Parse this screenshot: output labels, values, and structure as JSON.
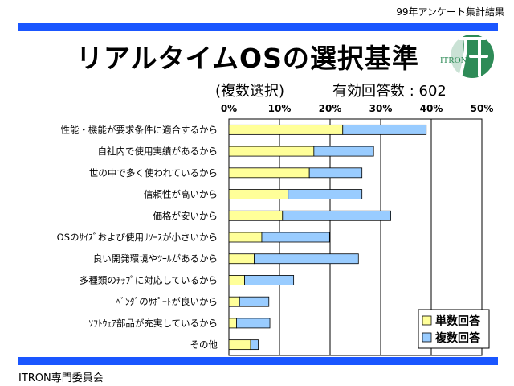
{
  "header": {
    "note": "99年アンケート集計結果",
    "title": "リアルタイムOSの選択基準",
    "subtitle_left": "(複数選択)",
    "subtitle_right": "有効回答数 : 602"
  },
  "logo": {
    "text": "ITRON",
    "color": "#2e8b57"
  },
  "footer": {
    "text": "ITRON専門委員会"
  },
  "colors": {
    "band": "#1a56ff",
    "single": "#ffff99",
    "multiple": "#99ccff"
  },
  "chart_data": {
    "type": "bar",
    "orientation": "horizontal",
    "stacked": true,
    "categories": [
      "性能・機能が要求条件に適合するから",
      "自社内で使用実績があるから",
      "世の中で多く使われているから",
      "信頼性が高いから",
      "価格が安いから",
      "OSのｻｲｽﾞおよび使用ﾘｿｰｽが小さいから",
      "良い開発環境やﾂｰﾙがあるから",
      "多種類のﾁｯﾌﾟに対応しているから",
      "ﾍﾞﾝﾀﾞのｻﾎﾟｰﾄが良いから",
      "ｿﾌﾄｳｪｱ部品が充実しているから",
      "その他"
    ],
    "series": [
      {
        "name": "単数回答",
        "values": [
          22.5,
          16.8,
          15.9,
          11.7,
          10.6,
          6.5,
          5.0,
          3.1,
          2.1,
          1.5,
          4.3
        ]
      },
      {
        "name": "複数回答",
        "values": [
          16.5,
          11.8,
          10.4,
          14.6,
          21.4,
          13.4,
          20.6,
          9.7,
          5.8,
          6.6,
          1.5
        ]
      }
    ],
    "x_ticks": [
      "0%",
      "10%",
      "20%",
      "30%",
      "40%",
      "50%"
    ],
    "xlim": [
      0,
      50
    ],
    "grid": true,
    "legend_position": "bottom-right"
  }
}
